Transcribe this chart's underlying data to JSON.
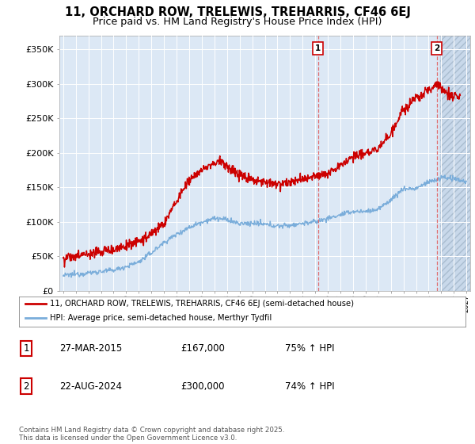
{
  "title": "11, ORCHARD ROW, TRELEWIS, TREHARRIS, CF46 6EJ",
  "subtitle": "Price paid vs. HM Land Registry's House Price Index (HPI)",
  "ylim": [
    0,
    370000
  ],
  "yticks": [
    0,
    50000,
    100000,
    150000,
    200000,
    250000,
    300000,
    350000
  ],
  "ytick_labels": [
    "£0",
    "£50K",
    "£100K",
    "£150K",
    "£200K",
    "£250K",
    "£300K",
    "£350K"
  ],
  "xlim_start": 1994.7,
  "xlim_end": 2027.3,
  "bg_color": "#dce8f5",
  "grid_color": "#ffffff",
  "red_color": "#cc0000",
  "blue_color": "#7aadda",
  "marker1_x": 2015.22,
  "marker2_x": 2024.64,
  "hatch_start": 2024.9,
  "legend_line1": "11, ORCHARD ROW, TRELEWIS, TREHARRIS, CF46 6EJ (semi-detached house)",
  "legend_line2": "HPI: Average price, semi-detached house, Merthyr Tydfil",
  "table_data": [
    [
      "1",
      "27-MAR-2015",
      "£167,000",
      "75% ↑ HPI"
    ],
    [
      "2",
      "22-AUG-2024",
      "£300,000",
      "74% ↑ HPI"
    ]
  ],
  "footnote": "Contains HM Land Registry data © Crown copyright and database right 2025.\nThis data is licensed under the Open Government Licence v3.0."
}
